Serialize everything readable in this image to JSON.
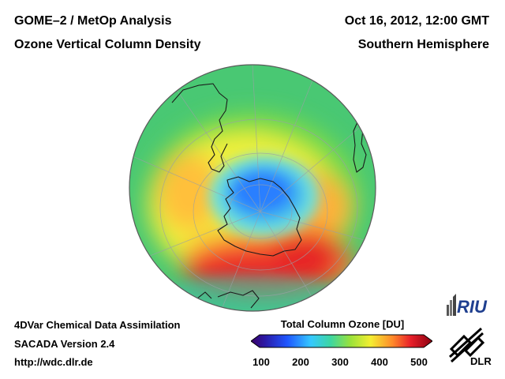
{
  "header": {
    "instrument": "GOME–2 / MetOp Analysis",
    "product": "Ozone Vertical Column Density",
    "datetime": "Oct 16, 2012, 12:00 GMT",
    "region": "Southern Hemisphere"
  },
  "footer": {
    "method": "4DVar Chemical Data Assimilation",
    "version": "SACADA Version 2.4",
    "url": "http://wdc.dlr.de"
  },
  "legend": {
    "title": "Total Column Ozone [DU]",
    "ticks": [
      "100",
      "200",
      "300",
      "400",
      "500"
    ],
    "min": 100,
    "max": 500
  },
  "logos": {
    "riu": "RIU",
    "dlr": "DLR"
  },
  "colors": {
    "ozone_hole": "#2a7fff",
    "high_ozone": "#e61e1e",
    "mid_ozone": "#5ad25a"
  }
}
